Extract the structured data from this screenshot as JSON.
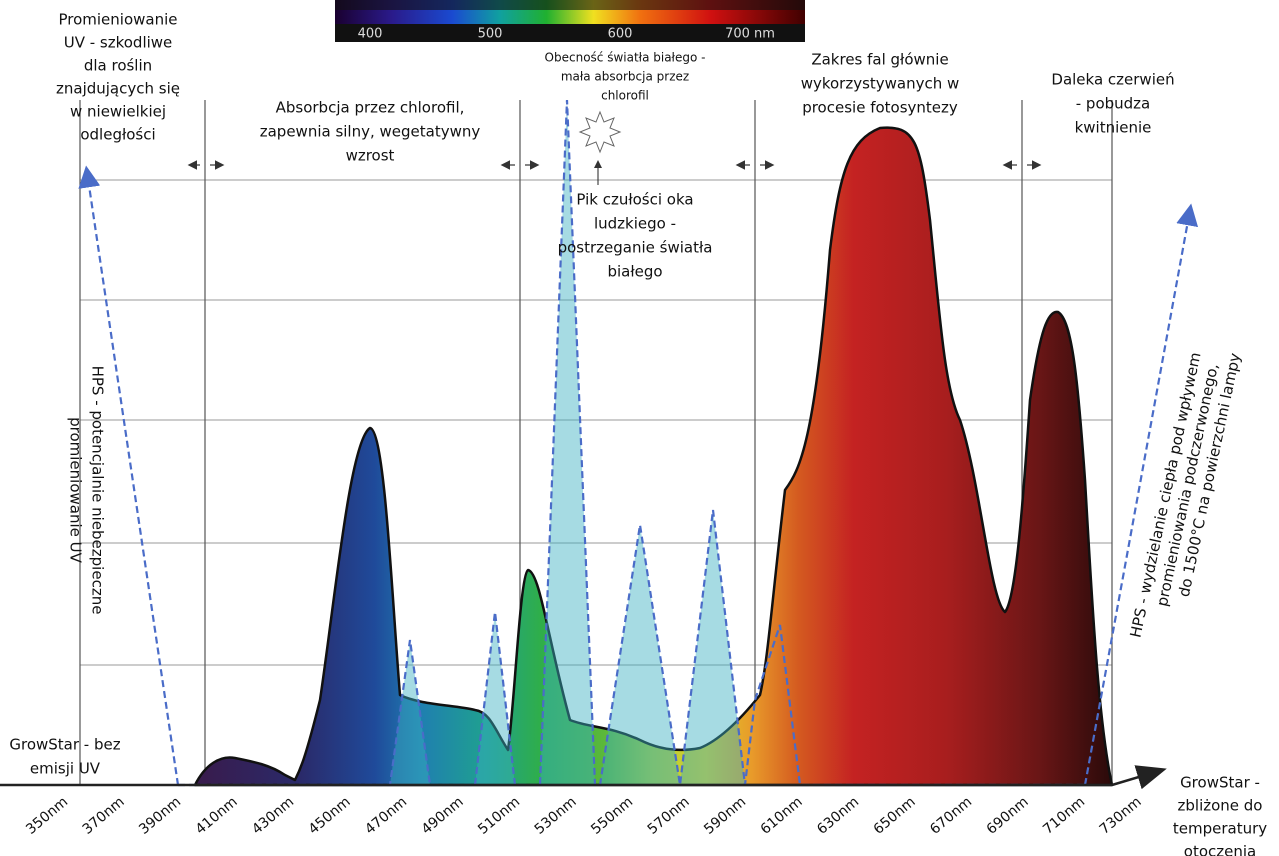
{
  "spectrum_strip": {
    "labels": [
      "400",
      "500",
      "600",
      "700 nm"
    ]
  },
  "annotations": {
    "uv_harmful": [
      "Promieniowanie",
      "UV - szkodliwe",
      "dla roślin",
      "znajdujących się",
      "w niewielkiej",
      "odległości"
    ],
    "chlorophyll_absorption": [
      "Absorbcja przez chlorofil,",
      "zapewnia silny, wegetatywny",
      "wzrost"
    ],
    "white_light": [
      "Obecność światła białego -",
      "mała absorbcja przez",
      "chlorofil"
    ],
    "photosynthesis_range": [
      "Zakres fal głównie",
      "wykorzystywanych w",
      "procesie fotosyntezy"
    ],
    "far_red": [
      "Daleka czerwień",
      "- pobudza",
      "kwitnienie"
    ],
    "eye_peak": [
      "Pik czułości oka",
      "ludzkiego -",
      "postrzeganie światła",
      "białego"
    ],
    "hps_uv": [
      "HPS - potencjalnie niebezpieczne",
      "promieniowanie UV"
    ],
    "hps_heat": [
      "HPS - wydzielanie ciepła pod wpływem",
      "promieniowania podczerwonego,",
      "do 1500°C na powierzchni lampy"
    ],
    "growstar_uv": [
      "GrowStar - bez",
      "emisji UV"
    ],
    "growstar_heat": [
      "GrowStar -",
      "zbliżone do",
      "temperatury",
      "otoczenia"
    ]
  },
  "x_axis": {
    "labels": [
      "350nm",
      "370nm",
      "390nm",
      "410nm",
      "430nm",
      "450nm",
      "470nm",
      "490nm",
      "510nm",
      "530nm",
      "550nm",
      "570nm",
      "590nm",
      "610nm",
      "630nm",
      "650nm",
      "670nm",
      "690nm",
      "710nm",
      "730nm"
    ]
  }
}
